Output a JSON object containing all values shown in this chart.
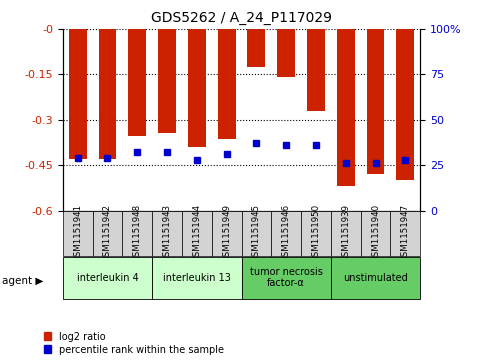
{
  "title": "GDS5262 / A_24_P117029",
  "samples": [
    "GSM1151941",
    "GSM1151942",
    "GSM1151948",
    "GSM1151943",
    "GSM1151944",
    "GSM1151949",
    "GSM1151945",
    "GSM1151946",
    "GSM1151950",
    "GSM1151939",
    "GSM1151940",
    "GSM1151947"
  ],
  "log2_ratio": [
    -0.43,
    -0.43,
    -0.355,
    -0.345,
    -0.39,
    -0.365,
    -0.125,
    -0.16,
    -0.27,
    -0.52,
    -0.48,
    -0.5
  ],
  "percentile": [
    29,
    29,
    32,
    32,
    28,
    31,
    37,
    36,
    36,
    26,
    26,
    28
  ],
  "agents": [
    {
      "label": "interleukin 4",
      "indices": [
        0,
        1,
        2
      ],
      "color": "#ccffcc"
    },
    {
      "label": "interleukin 13",
      "indices": [
        3,
        4,
        5
      ],
      "color": "#ccffcc"
    },
    {
      "label": "tumor necrosis\nfactor-α",
      "indices": [
        6,
        7,
        8
      ],
      "color": "#66cc66"
    },
    {
      "label": "unstimulated",
      "indices": [
        9,
        10,
        11
      ],
      "color": "#66cc66"
    }
  ],
  "bar_color": "#cc2200",
  "dot_color": "#0000cc",
  "ylim_left": [
    -0.6,
    0.0
  ],
  "ylim_right": [
    0,
    100
  ],
  "yticks_left": [
    -0.6,
    -0.45,
    -0.3,
    -0.15,
    0.0
  ],
  "yticks_right": [
    0,
    25,
    50,
    75,
    100
  ],
  "ytick_left_labels": [
    "-0.6",
    "-0.45",
    "-0.3",
    "-0.15",
    "-0"
  ],
  "ytick_right_labels": [
    "0",
    "25",
    "50",
    "75",
    "100%"
  ],
  "background_color": "#ffffff",
  "plot_bg": "#ffffff",
  "bar_width": 0.6,
  "legend_labels": [
    "log2 ratio",
    "percentile rank within the sample"
  ],
  "legend_colors": [
    "#cc2200",
    "#0000cc"
  ]
}
